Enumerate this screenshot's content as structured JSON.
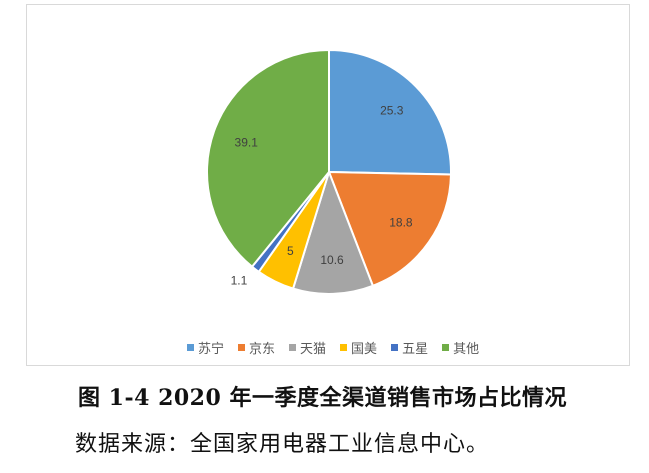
{
  "chart_data": {
    "type": "pie",
    "categories": [
      "苏宁",
      "京东",
      "天猫",
      "国美",
      "五星",
      "其他"
    ],
    "values": [
      25.3,
      18.8,
      10.6,
      5,
      1.1,
      39.1
    ],
    "labels": [
      "25.3",
      "18.8",
      "10.6",
      "5",
      "1.1",
      "39.1"
    ],
    "colors": [
      "#5b9bd5",
      "#ed7d31",
      "#a5a5a5",
      "#ffc000",
      "#4472c4",
      "#70ad47"
    ],
    "legend_position": "bottom",
    "start_angle_deg": 0,
    "direction": "clockwise"
  },
  "caption": "图 1-4 2020 年一季度全渠道销售市场占比情况",
  "source": "数据来源：全国家用电器工业信息中心。"
}
